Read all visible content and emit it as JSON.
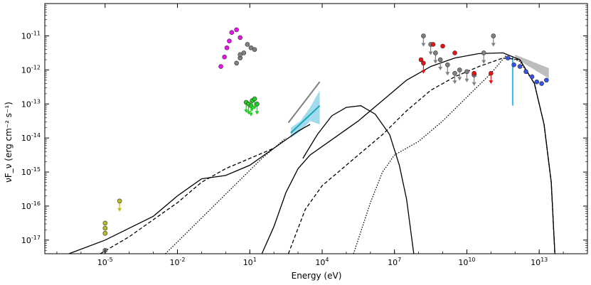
{
  "chart_data": {
    "type": "scatter",
    "xlabel": "Energy (eV)",
    "ylabel": "νF_ν (erg cm⁻² s⁻¹)",
    "xscale": "log",
    "yscale": "log",
    "xlim_log10": [
      -7.5,
      15.0
    ],
    "ylim_log10": [
      -17.4,
      -10.05
    ],
    "grid": false,
    "x_ticks": [
      {
        "log10": -5,
        "label": "10",
        "exp": "-5"
      },
      {
        "log10": -2,
        "label": "10",
        "exp": "-2"
      },
      {
        "log10": 1,
        "label": "10",
        "exp": "1"
      },
      {
        "log10": 4,
        "label": "10",
        "exp": "4"
      },
      {
        "log10": 7,
        "label": "10",
        "exp": "7"
      },
      {
        "log10": 10,
        "label": "10",
        "exp": "10"
      },
      {
        "log10": 13,
        "label": "10",
        "exp": "13"
      }
    ],
    "y_ticks": [
      {
        "log10": -17,
        "label": "10",
        "exp": "-17"
      },
      {
        "log10": -16,
        "label": "10",
        "exp": "-16"
      },
      {
        "log10": -15,
        "label": "10",
        "exp": "-15"
      },
      {
        "log10": -14,
        "label": "10",
        "exp": "-14"
      },
      {
        "log10": -13,
        "label": "10",
        "exp": "-13"
      },
      {
        "log10": -12,
        "label": "10",
        "exp": "-12"
      },
      {
        "log10": -11,
        "label": "10",
        "exp": "-11"
      }
    ],
    "model_curves": [
      {
        "style": "solid",
        "points_log10": [
          [
            -6.5,
            -17.4
          ],
          [
            -5,
            -17.0
          ],
          [
            -3,
            -16.3
          ],
          [
            -2,
            -15.7
          ],
          [
            -1,
            -15.2
          ],
          [
            0,
            -15.1
          ],
          [
            1,
            -14.8
          ],
          [
            2,
            -14.3
          ],
          [
            3,
            -13.8
          ],
          [
            3.5,
            -13.6
          ]
        ]
      },
      {
        "style": "dashed",
        "points_log10": [
          [
            -5.2,
            -17.4
          ],
          [
            -4,
            -16.9
          ],
          [
            -3,
            -16.4
          ],
          [
            -2,
            -15.9
          ],
          [
            -1,
            -15.3
          ],
          [
            0,
            -14.9
          ],
          [
            1,
            -14.6
          ],
          [
            2,
            -14.3
          ]
        ]
      },
      {
        "style": "dotted",
        "points_log10": [
          [
            -2.5,
            -17.4
          ],
          [
            -1.5,
            -16.7
          ],
          [
            -0.5,
            -16.0
          ],
          [
            0.5,
            -15.3
          ],
          [
            1.5,
            -14.6
          ],
          [
            2.5,
            -14.0
          ]
        ]
      },
      {
        "style": "solid",
        "points_log10": [
          [
            1.5,
            -17.4
          ],
          [
            2,
            -16.6
          ],
          [
            2.5,
            -15.6
          ],
          [
            3,
            -14.9
          ],
          [
            3.5,
            -14.5
          ],
          [
            4.5,
            -14.0
          ],
          [
            5.5,
            -13.5
          ],
          [
            6.5,
            -12.9
          ],
          [
            7.5,
            -12.3
          ],
          [
            8.5,
            -11.9
          ],
          [
            9.5,
            -11.65
          ],
          [
            10.5,
            -11.52
          ],
          [
            11.5,
            -11.5
          ],
          [
            12.2,
            -11.7
          ],
          [
            12.8,
            -12.4
          ],
          [
            13.2,
            -13.6
          ],
          [
            13.5,
            -15.3
          ],
          [
            13.65,
            -17.4
          ]
        ]
      },
      {
        "style": "dashed",
        "points_log10": [
          [
            2.6,
            -17.4
          ],
          [
            3.3,
            -16.1
          ],
          [
            4,
            -15.4
          ],
          [
            4.5,
            -15.1
          ],
          [
            5.5,
            -14.5
          ],
          [
            6.5,
            -13.9
          ],
          [
            7.5,
            -13.2
          ],
          [
            8.5,
            -12.6
          ],
          [
            9.5,
            -12.2
          ],
          [
            10.5,
            -11.9
          ],
          [
            11.5,
            -11.65
          ],
          [
            12.2,
            -11.7
          ],
          [
            12.8,
            -12.4
          ],
          [
            13.2,
            -13.6
          ],
          [
            13.5,
            -15.3
          ],
          [
            13.65,
            -17.4
          ]
        ]
      },
      {
        "style": "dotted",
        "points_log10": [
          [
            5.3,
            -17.4
          ],
          [
            6,
            -15.9
          ],
          [
            6.5,
            -15.0
          ],
          [
            7,
            -14.5
          ],
          [
            8,
            -14.1
          ],
          [
            9,
            -13.5
          ],
          [
            10,
            -12.8
          ],
          [
            11,
            -12.1
          ],
          [
            11.6,
            -11.6
          ],
          [
            12.2,
            -11.75
          ],
          [
            12.8,
            -12.4
          ],
          [
            13.2,
            -13.6
          ],
          [
            13.5,
            -15.3
          ],
          [
            13.65,
            -17.4
          ]
        ]
      },
      {
        "style": "solid",
        "points_log10": [
          [
            3.2,
            -14.6
          ],
          [
            3.8,
            -13.9
          ],
          [
            4.4,
            -13.35
          ],
          [
            5,
            -13.1
          ],
          [
            5.6,
            -13.05
          ],
          [
            6.2,
            -13.3
          ],
          [
            6.8,
            -13.9
          ],
          [
            7.2,
            -14.8
          ],
          [
            7.5,
            -15.8
          ],
          [
            7.8,
            -17.4
          ]
        ]
      }
    ],
    "points": [
      {
        "name": "yellow",
        "color": "#bcbc22",
        "points_log10": [
          [
            -5.0,
            -16.8,
            0
          ],
          [
            -5.0,
            -16.65,
            0
          ],
          [
            -5.0,
            -16.5,
            0
          ],
          [
            -4.4,
            -15.85,
            1
          ]
        ]
      },
      {
        "name": "magenta",
        "color": "#ee11ee",
        "points_log10": [
          [
            -0.2,
            -11.9
          ],
          [
            -0.05,
            -11.62
          ],
          [
            0.05,
            -11.35
          ],
          [
            0.15,
            -11.15
          ],
          [
            0.25,
            -10.9
          ],
          [
            0.45,
            -10.82
          ],
          [
            0.6,
            -11.05
          ]
        ]
      },
      {
        "name": "grey-optical",
        "color": "#808080",
        "points_log10": [
          [
            0.45,
            -11.8
          ],
          [
            0.6,
            -11.65
          ],
          [
            0.75,
            -11.5
          ],
          [
            0.9,
            -11.25
          ],
          [
            1.05,
            -11.35
          ],
          [
            1.2,
            -11.4
          ],
          [
            0.6,
            -11.55
          ]
        ]
      },
      {
        "name": "green",
        "color": "#22cc22",
        "points_log10": [
          [
            0.85,
            -12.95,
            1
          ],
          [
            0.95,
            -13.0,
            1
          ],
          [
            1.05,
            -13.05,
            1
          ],
          [
            1.1,
            -12.9,
            1
          ],
          [
            1.2,
            -12.85,
            1
          ],
          [
            1.3,
            -13.0,
            1
          ]
        ]
      },
      {
        "name": "grey-radio",
        "color": "#808080",
        "points_log10": [
          [
            -5.0,
            -17.3,
            1
          ]
        ]
      },
      {
        "name": "grey-gamma",
        "color": "#808080",
        "points_log10": [
          [
            8.2,
            -11.0,
            1
          ],
          [
            8.5,
            -11.25,
            1
          ],
          [
            8.7,
            -11.5,
            1
          ],
          [
            8.9,
            -11.7,
            1
          ],
          [
            9.2,
            -11.85,
            1
          ],
          [
            9.5,
            -12.1,
            1
          ],
          [
            9.7,
            -12.0,
            1
          ],
          [
            10.0,
            -12.05,
            1
          ],
          [
            10.3,
            -12.15,
            1
          ],
          [
            10.7,
            -11.5,
            1
          ],
          [
            11.1,
            -11.0,
            1
          ]
        ]
      },
      {
        "name": "red",
        "color": "#ee1111",
        "points_log10": [
          [
            8.1,
            -11.7
          ],
          [
            8.6,
            -11.25
          ],
          [
            9.0,
            -11.3
          ],
          [
            9.5,
            -11.5
          ],
          [
            10.3,
            -12.1
          ],
          [
            11.0,
            -12.1,
            1
          ],
          [
            8.2,
            -11.8,
            1
          ]
        ]
      },
      {
        "name": "blue",
        "color": "#3355ee",
        "points_log10": [
          [
            11.7,
            -11.65
          ],
          [
            11.95,
            -11.85
          ],
          [
            12.2,
            -11.9
          ],
          [
            12.45,
            -12.05
          ],
          [
            12.7,
            -12.2
          ],
          [
            12.9,
            -12.35
          ],
          [
            13.1,
            -12.4
          ],
          [
            13.3,
            -12.3
          ]
        ]
      }
    ],
    "cyan_band": {
      "color": "#55bbe0",
      "line_color": "#18a8b8",
      "x_log10": [
        2.7,
        3.9
      ],
      "y_line_log10": [
        -13.85,
        -13.05
      ]
    },
    "grey_line": {
      "color": "#808080",
      "x_log10": [
        2.6,
        3.9
      ],
      "y_log10": [
        -13.55,
        -12.35
      ]
    },
    "gamma_bowtie": {
      "color": "#9a9a9a",
      "x_log10": [
        12.0,
        13.4
      ]
    },
    "blue_error": {
      "color": "#3bb6f0",
      "x_log10": 11.9,
      "y_log10": [
        -13.05,
        -11.6
      ]
    }
  }
}
